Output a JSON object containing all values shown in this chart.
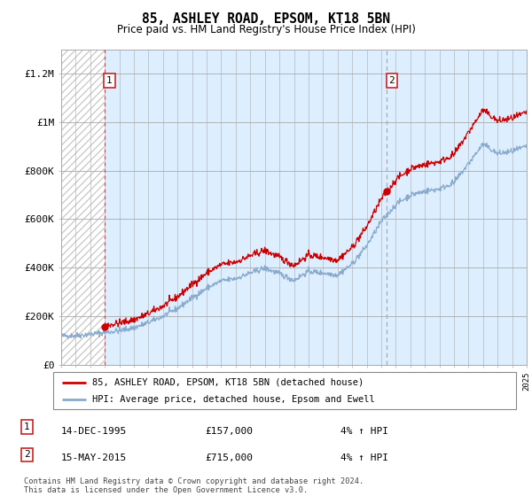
{
  "title": "85, ASHLEY ROAD, EPSOM, KT18 5BN",
  "subtitle": "Price paid vs. HM Land Registry's House Price Index (HPI)",
  "sale1_date": "14-DEC-1995",
  "sale1_price": 157000,
  "sale2_date": "15-MAY-2015",
  "sale2_price": 715000,
  "sale1_hpi_pct": "4% ↑ HPI",
  "sale2_hpi_pct": "4% ↑ HPI",
  "legend_line1": "85, ASHLEY ROAD, EPSOM, KT18 5BN (detached house)",
  "legend_line2": "HPI: Average price, detached house, Epsom and Ewell",
  "footer": "Contains HM Land Registry data © Crown copyright and database right 2024.\nThis data is licensed under the Open Government Licence v3.0.",
  "line_color_red": "#cc0000",
  "line_color_blue": "#88aacc",
  "bg_color": "#ddeeff",
  "sale_marker_color": "#cc0000",
  "sale1_vline_color": "#dd4444",
  "sale2_vline_color": "#aaaaaa",
  "box_color": "#cc2222",
  "ylim_max": 1300000,
  "yticks": [
    0,
    200000,
    400000,
    600000,
    800000,
    1000000,
    1200000
  ],
  "ytick_labels": [
    "£0",
    "£200K",
    "£400K",
    "£600K",
    "£800K",
    "£1M",
    "£1.2M"
  ],
  "xstart": 1993,
  "xend": 2025,
  "sale1_x": 1995.96,
  "sale2_x": 2015.37
}
